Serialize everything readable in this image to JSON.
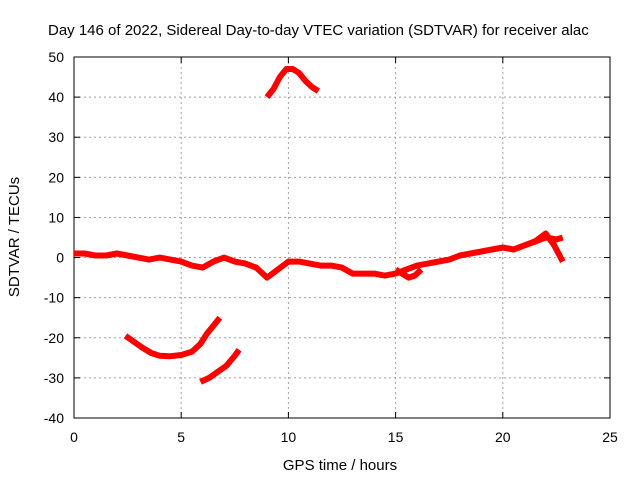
{
  "chart_data": {
    "type": "line",
    "title": "Day 146 of 2022, Sidereal Day-to-day VTEC variation (SDTVAR) for receiver alac",
    "xlabel": "GPS time / hours",
    "ylabel": "SDTVAR / TECUs",
    "xlim": [
      0,
      25
    ],
    "ylim": [
      -40,
      50
    ],
    "xticks": [
      0,
      5,
      10,
      15,
      20,
      25
    ],
    "yticks": [
      -40,
      -30,
      -20,
      -10,
      0,
      10,
      20,
      30,
      40,
      50
    ],
    "grid": true,
    "color": "#ff0000",
    "series": [
      {
        "name": "main-arc",
        "x": [
          0,
          0.5,
          1,
          1.5,
          2,
          2.5,
          3,
          3.5,
          4,
          4.5,
          5,
          5.5,
          6,
          6.5,
          7,
          7.5,
          8,
          8.5,
          9,
          9.5,
          10,
          10.5,
          11,
          11.5,
          12,
          12.5,
          13,
          13.5,
          14,
          14.5,
          15,
          15.5,
          16,
          16.5,
          17,
          17.5,
          18,
          18.5,
          19,
          19.5,
          20,
          20.5,
          21,
          21.5,
          22,
          22.5,
          22.8
        ],
        "y": [
          1,
          1,
          0.5,
          0.5,
          1,
          0.5,
          0,
          -0.5,
          0,
          -0.5,
          -1,
          -2,
          -2.5,
          -1,
          0,
          -1,
          -1.5,
          -2.5,
          -5,
          -3,
          -1,
          -1,
          -1.5,
          -2,
          -2,
          -2.5,
          -4,
          -4,
          -4,
          -4.5,
          -4,
          -3,
          -2,
          -1.5,
          -1,
          -0.5,
          0.5,
          1,
          1.5,
          2,
          2.5,
          2,
          3,
          4,
          5,
          4.5,
          5
        ]
      },
      {
        "name": "jump-segment-1",
        "x": [
          15,
          15.3,
          15.6,
          15.9,
          16.2
        ],
        "y": [
          -3,
          -4,
          -5,
          -4.5,
          -3
        ]
      },
      {
        "name": "jump-segment-2",
        "x": [
          20.5,
          21,
          21.5,
          22,
          22.4,
          22.8
        ],
        "y": [
          2,
          3,
          4,
          6,
          3,
          -1
        ]
      },
      {
        "name": "upper-arc",
        "x": [
          9.0,
          9.3,
          9.6,
          9.9,
          10.2,
          10.5,
          10.8,
          11.1,
          11.4
        ],
        "y": [
          40,
          42,
          45,
          47,
          47,
          46,
          44,
          42.5,
          41.5
        ]
      },
      {
        "name": "lower-arc-1",
        "x": [
          2.4,
          2.8,
          3.2,
          3.6,
          4.0,
          4.5,
          5.0,
          5.5,
          5.9,
          6.2,
          6.5,
          6.8
        ],
        "y": [
          -19.5,
          -21,
          -22.5,
          -23.8,
          -24.5,
          -24.6,
          -24.3,
          -23.5,
          -21.5,
          -19,
          -17,
          -15
        ]
      },
      {
        "name": "lower-arc-2",
        "x": [
          5.9,
          6.3,
          6.7,
          7.1,
          7.5,
          7.7
        ],
        "y": [
          -31,
          -30,
          -28.5,
          -27,
          -24.5,
          -23
        ]
      }
    ]
  }
}
